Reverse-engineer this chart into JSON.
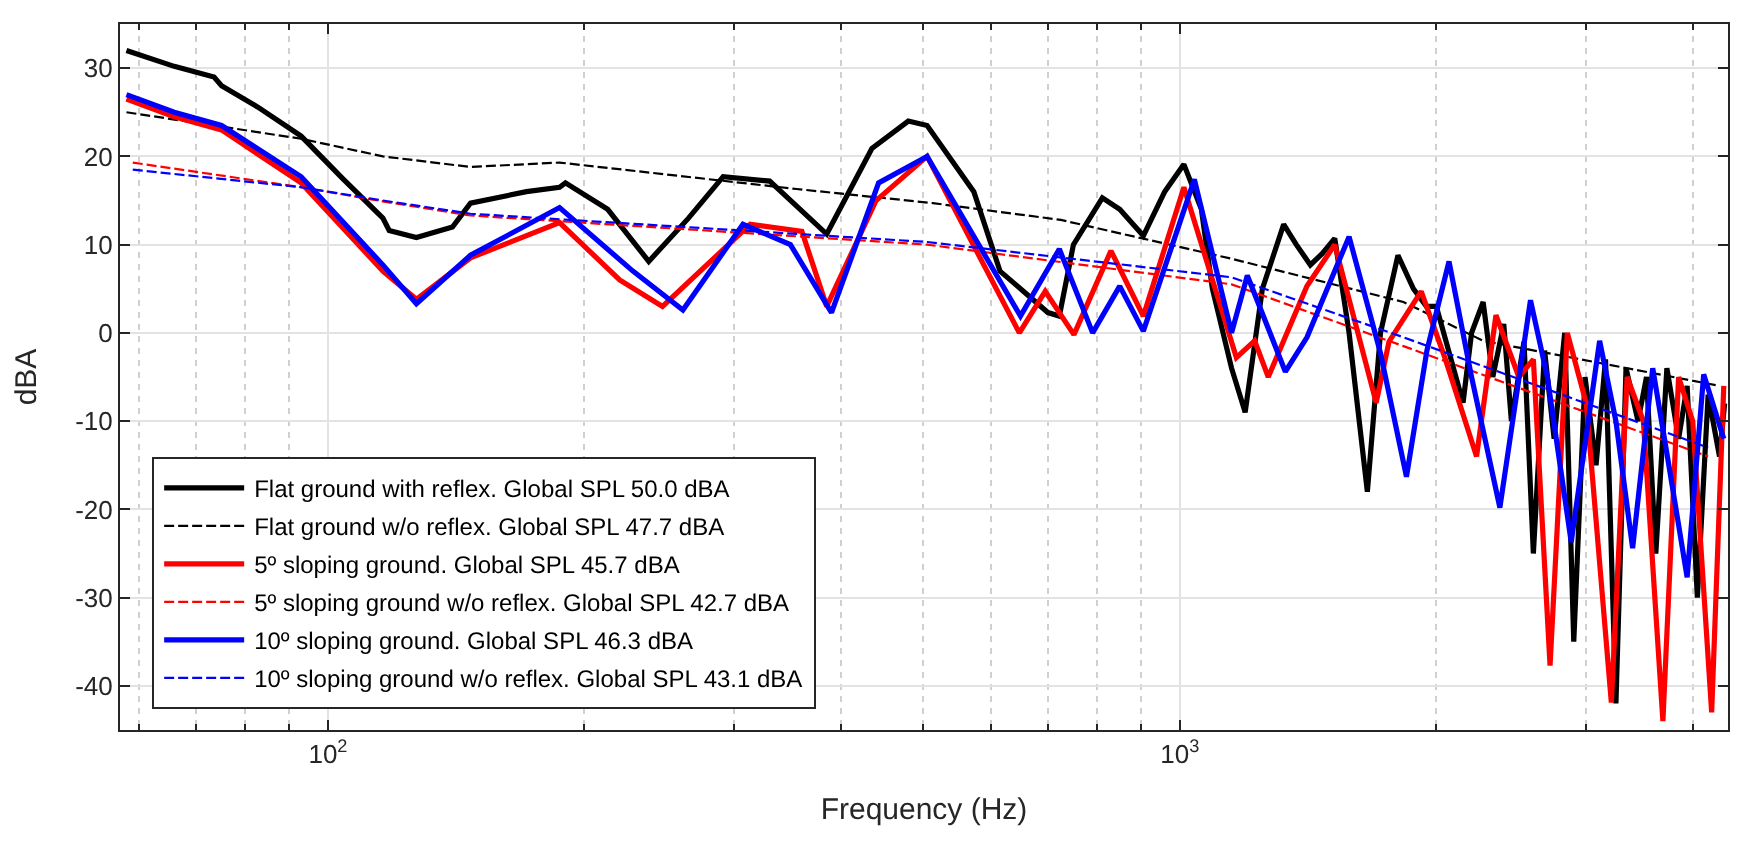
{
  "chart_data": {
    "type": "line",
    "xlabel": "Frequency (Hz)",
    "ylabel": "dBA",
    "log": "x",
    "grid": true,
    "legend": "bottom left",
    "xlim": [
      57,
      4400
    ],
    "ylim": [
      -45,
      35
    ],
    "xticks": [
      {
        "value": 100,
        "label": "10$^{2}$"
      },
      {
        "value": 1000,
        "label": "10$^{3}$"
      }
    ],
    "yticks": [
      -40,
      -30,
      -20,
      -10,
      0,
      10,
      20,
      30
    ],
    "series": [
      {
        "name": "Flat ground with reflex. Global SPL 50.0 dBA",
        "color": "#000000",
        "line_style": "solid",
        "x": [
          58,
          66,
          73.5,
          75,
          83,
          93,
          104,
          116,
          118,
          127,
          140,
          147,
          171,
          187,
          190,
          213,
          238,
          265,
          291,
          330,
          385,
          435,
          480,
          505,
          573,
          615,
          650,
          700,
          722,
          750,
          811,
          850,
          906,
          960,
          1011,
          1060,
          1092,
          1150,
          1193,
          1250,
          1324,
          1370,
          1423,
          1470,
          1520,
          1580,
          1660,
          1720,
          1803,
          1880,
          1947,
          2000,
          2150,
          2200,
          2270,
          2330,
          2400,
          2450,
          2535,
          2600,
          2680,
          2750,
          2830,
          2900,
          2990,
          3080,
          3160,
          3250,
          3340,
          3450,
          3530,
          3620,
          3730,
          3850,
          3940,
          4050,
          4170,
          4300,
          4360
        ],
        "values": [
          32,
          30.2,
          29,
          28,
          25.5,
          22.3,
          17.5,
          13,
          11.6,
          10.8,
          12,
          14.7,
          16,
          16.5,
          17,
          14,
          8.1,
          13,
          17.7,
          17.2,
          11.2,
          20.9,
          24,
          23.5,
          16,
          7,
          5,
          2.3,
          1.9,
          10,
          15.3,
          14,
          11,
          16,
          19.1,
          14,
          5,
          -4,
          -9,
          5,
          12.3,
          10,
          7.7,
          9,
          10.7,
          0,
          -18,
          0,
          8.8,
          5,
          3,
          3,
          -7.9,
          0,
          3.5,
          -5,
          1,
          -10,
          -1,
          -25,
          -2,
          -12,
          0,
          -35,
          -5,
          -15,
          -3,
          -42,
          -4,
          -10,
          -5,
          -25,
          -4,
          -12,
          -6,
          -30,
          -7,
          -14,
          -8
        ]
      },
      {
        "name": "Flat ground w/o reflex. Global SPL 47.7 dBA",
        "color": "#000000",
        "line_style": "dashed",
        "x": [
          58,
          93,
          116,
          147,
          187,
          355,
          513,
          725,
          1150,
          1830,
          2270,
          4300
        ],
        "values": [
          25,
          22,
          20,
          18.8,
          19.3,
          16.3,
          14.7,
          12.8,
          8.4,
          3.5,
          -0.9,
          -6
        ]
      },
      {
        "name": "5º sloping ground. Global SPL 45.7 dBA",
        "color": "#ff0000",
        "line_style": "solid",
        "x": [
          58,
          66,
          75,
          93,
          116,
          127,
          147,
          187,
          220,
          247,
          313,
          360,
          385,
          440,
          505,
          648,
          695,
          751,
          830,
          906,
          1011,
          1165,
          1224,
          1270,
          1410,
          1520,
          1700,
          1760,
          1920,
          2050,
          2230,
          2350,
          2500,
          2600,
          2720,
          2850,
          3000,
          3210,
          3350,
          3500,
          3690,
          3850,
          4000,
          4210,
          4350
        ],
        "values": [
          26.5,
          24.5,
          23,
          17,
          7,
          3.8,
          8.5,
          12.5,
          6,
          3,
          12.3,
          11.5,
          3,
          15,
          20,
          0,
          4.7,
          -0.2,
          9.3,
          1.9,
          16.5,
          -2.8,
          -0.9,
          -5,
          5.3,
          10,
          -7.9,
          -1,
          4.7,
          -3,
          -14,
          2,
          -5,
          -3,
          -37.7,
          0,
          -8,
          -41.9,
          -5,
          -10,
          -44,
          -5,
          -10,
          -43,
          -6
        ]
      },
      {
        "name": "5º sloping ground w/o reflex. Global SPL 42.7 dBA",
        "color": "#ff0000",
        "line_style": "dashed",
        "x": [
          59,
          93,
          116,
          147,
          505,
          1150,
          1830,
          4170
        ],
        "values": [
          19.3,
          16.5,
          14.9,
          13.3,
          10,
          5.5,
          -1.5,
          -14
        ]
      },
      {
        "name": "10º sloping ground. Global SPL 46.3 dBA",
        "color": "#0000ff",
        "line_style": "solid",
        "x": [
          58,
          66,
          75,
          93,
          116,
          127,
          147,
          187,
          228,
          261,
          307,
          349,
          390,
          443,
          505,
          650,
          722,
          790,
          850,
          906,
          1040,
          1150,
          1200,
          1330,
          1410,
          1580,
          1720,
          1845,
          1950,
          2070,
          2200,
          2375,
          2580,
          2700,
          2880,
          3110,
          3250,
          3400,
          3590,
          3750,
          3940,
          4120,
          4350
        ],
        "values": [
          27,
          25,
          23.5,
          17.7,
          7.7,
          3.3,
          8.8,
          14.2,
          7,
          2.6,
          12.3,
          10,
          2.3,
          17,
          20,
          1.9,
          9.5,
          0,
          5.3,
          0.2,
          17.4,
          0,
          6.5,
          -4.4,
          -0.5,
          10.9,
          -2.3,
          -16.3,
          -2,
          8.1,
          -5,
          -19.8,
          3.7,
          -5,
          -23.7,
          -0.9,
          -10,
          -24.4,
          -4,
          -15,
          -27.7,
          -4.7,
          -12
        ]
      },
      {
        "name": "10º sloping ground w/o reflex. Global SPL 43.1 dBA",
        "color": "#0000ff",
        "line_style": "dashed",
        "x": [
          59,
          93,
          116,
          147,
          505,
          1150,
          1830,
          4170
        ],
        "values": [
          18.5,
          16.5,
          15,
          13.5,
          10.3,
          6.3,
          -0.5,
          -13
        ]
      }
    ]
  }
}
